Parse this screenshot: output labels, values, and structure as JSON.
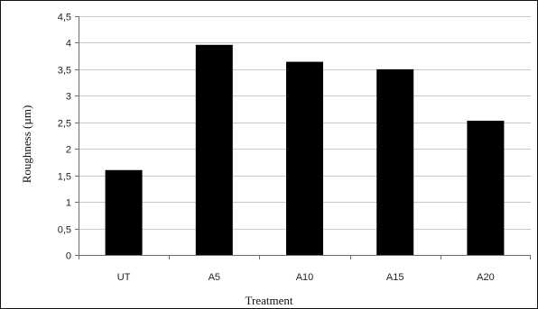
{
  "chart_data": {
    "type": "bar",
    "title": "",
    "xlabel": "Treatment",
    "ylabel": "Roughness (µm)",
    "categories": [
      "UT",
      "A5",
      "A10",
      "A15",
      "A20"
    ],
    "values": [
      1.6,
      3.96,
      3.64,
      3.5,
      2.53
    ],
    "ylim": [
      0,
      4.5
    ],
    "yticks": [
      "0",
      "0,5",
      "1",
      "1,5",
      "2",
      "2,5",
      "3",
      "3,5",
      "4",
      "4,5"
    ],
    "ytick_values": [
      0,
      0.5,
      1,
      1.5,
      2,
      2.5,
      3,
      3.5,
      4,
      4.5
    ],
    "grid": "horizontal",
    "legend": "none",
    "colors": {
      "bar": "#000000",
      "grid": "#c8c8c8",
      "axis": "#6e6e6e",
      "frame": "#111111"
    }
  }
}
